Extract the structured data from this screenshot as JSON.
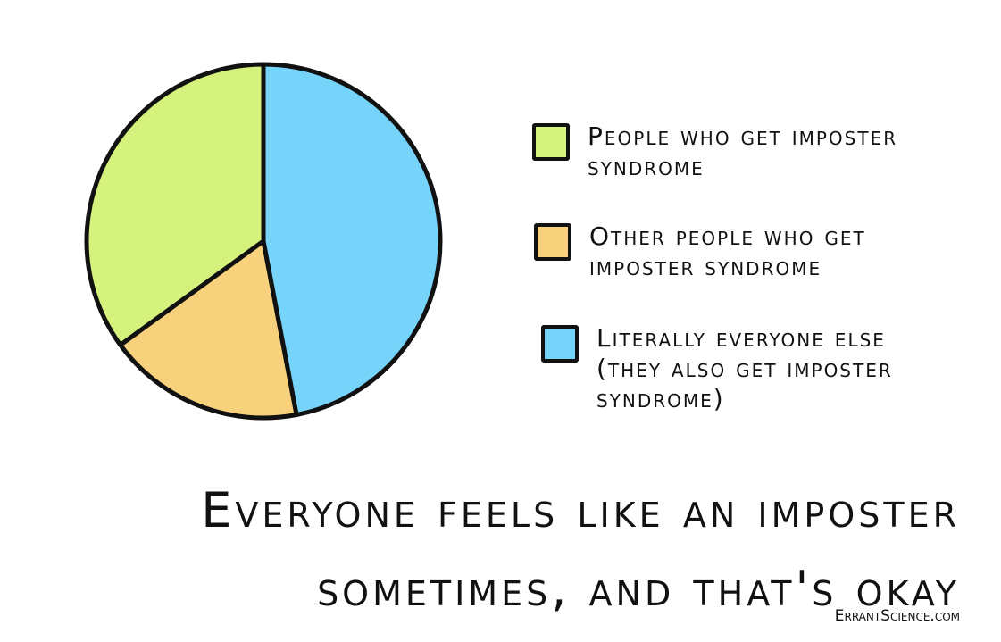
{
  "chart_data": {
    "type": "pie",
    "title": "Everyone feels like an imposter sometimes, and that's okay",
    "categories": [
      "People who get imposter syndrome",
      "Other people who get imposter syndrome",
      "Literally everyone else (they also get imposter syndrome)"
    ],
    "values": [
      35,
      18,
      47
    ],
    "colors": [
      "#d4f27c",
      "#f8d17c",
      "#76d3fa"
    ],
    "credit": "ErrantScience.com"
  }
}
